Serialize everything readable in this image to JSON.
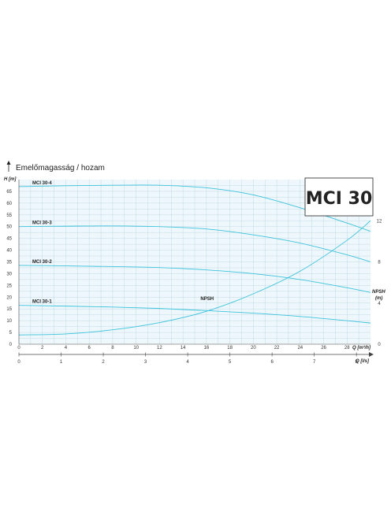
{
  "title": "Emelőmagasság / hozam",
  "badge": "MCI 30",
  "chart_data": {
    "type": "line",
    "title": "Emelőmagasság / hozam",
    "ylabel": "H [m]",
    "ylabel_right": "NPSH",
    "ylabel_right_unit": "(m)",
    "xlabel": "Q [m³/h]",
    "xlabel_secondary": "Q [l/s]",
    "xlim": [
      0,
      30
    ],
    "ylim": [
      0,
      70
    ],
    "ylim_right": [
      0,
      16
    ],
    "x_ticks": [
      0,
      2,
      4,
      6,
      8,
      10,
      12,
      14,
      16,
      18,
      20,
      22,
      24,
      26,
      28
    ],
    "y_ticks": [
      0,
      5,
      10,
      15,
      20,
      25,
      30,
      35,
      40,
      45,
      50,
      55,
      60,
      65
    ],
    "y_right_ticks": [
      0,
      4,
      8,
      12
    ],
    "x_secondary_ticks": [
      0,
      1,
      2,
      3,
      4,
      5,
      6,
      7,
      8
    ],
    "grid": true,
    "series": [
      {
        "name": "MCI 30-4",
        "color": "#3cc3dc",
        "x": [
          0,
          4,
          8,
          12,
          16,
          20,
          24,
          28,
          30
        ],
        "y": [
          67,
          67.4,
          67.6,
          67.6,
          66.5,
          63.5,
          58,
          51.5,
          48
        ]
      },
      {
        "name": "MCI 30-3",
        "color": "#3cc3dc",
        "x": [
          0,
          4,
          8,
          12,
          16,
          20,
          24,
          28,
          30
        ],
        "y": [
          50,
          50.2,
          50.3,
          50,
          49,
          46.5,
          43,
          38,
          35
        ]
      },
      {
        "name": "MCI 30-2",
        "color": "#3cc3dc",
        "x": [
          0,
          4,
          8,
          12,
          16,
          20,
          24,
          28,
          30
        ],
        "y": [
          33.5,
          33.3,
          33,
          32.6,
          31.6,
          30,
          27.5,
          24,
          22
        ]
      },
      {
        "name": "MCI 30-1",
        "color": "#3cc3dc",
        "x": [
          0,
          4,
          8,
          12,
          16,
          20,
          24,
          28,
          30
        ],
        "y": [
          16.5,
          16.2,
          15.8,
          15.2,
          14.3,
          13.2,
          11.8,
          10,
          9
        ]
      },
      {
        "name": "NPSH",
        "color": "#3cc3dc",
        "axis": "right",
        "x": [
          0,
          4,
          8,
          12,
          16,
          20,
          24,
          28,
          30
        ],
        "y": [
          0.9,
          1.0,
          1.4,
          2.1,
          3.2,
          4.9,
          7.1,
          10.1,
          12
        ]
      }
    ]
  }
}
